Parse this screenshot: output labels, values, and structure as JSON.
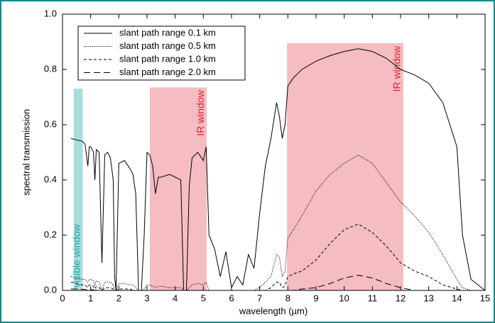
{
  "chart_data": {
    "type": "line",
    "xlabel": "wavelength (µm)",
    "ylabel": "spectral  transmission",
    "xlim": [
      0,
      15
    ],
    "ylim": [
      0,
      1
    ],
    "xticks": [
      0,
      1,
      2,
      3,
      4,
      5,
      6,
      7,
      8,
      9,
      10,
      11,
      12,
      13,
      14,
      15
    ],
    "yticks": [
      {
        "value": 0,
        "label": "0.0"
      },
      0.2,
      0.4,
      0.6,
      0.8,
      {
        "value": 1,
        "label": "1.0"
      }
    ],
    "spans": [
      {
        "x0": 0.4,
        "x1": 0.72,
        "y1": 0.73,
        "color": "#a9dcdb",
        "label": "visible window",
        "label_color": "#2aa5a0"
      },
      {
        "x0": 3.1,
        "x1": 5.12,
        "y1": 0.735,
        "color": "#f5bcc2",
        "label": "IR window",
        "label_color": "#d8262f"
      },
      {
        "x0": 7.97,
        "x1": 12.1,
        "y1": 0.895,
        "color": "#f5bcc2",
        "label": "IR window",
        "label_color": "#d8262f"
      }
    ],
    "x": [
      0.3,
      0.5,
      0.7,
      0.8,
      0.9,
      0.95,
      1.0,
      1.1,
      1.15,
      1.2,
      1.3,
      1.4,
      1.5,
      1.6,
      1.7,
      1.8,
      1.85,
      1.9,
      2.0,
      2.2,
      2.4,
      2.5,
      2.6,
      2.7,
      2.8,
      2.9,
      3.0,
      3.1,
      3.2,
      3.3,
      3.4,
      3.5,
      3.8,
      4.0,
      4.2,
      4.3,
      4.4,
      4.5,
      4.6,
      4.8,
      5.0,
      5.1,
      5.2,
      5.4,
      5.6,
      5.8,
      6.0,
      6.2,
      6.4,
      6.6,
      6.8,
      7.0,
      7.2,
      7.4,
      7.6,
      7.7,
      7.8,
      7.9,
      8.0,
      8.2,
      8.5,
      9.0,
      9.5,
      10.0,
      10.5,
      11.0,
      11.5,
      12.0,
      12.5,
      13.0,
      13.5,
      14.0,
      14.2,
      14.5,
      15.0
    ],
    "series": [
      {
        "name": "slant path range 0.1 km",
        "color": "#000000",
        "dash": "solid",
        "values": [
          0.55,
          0.545,
          0.54,
          0.53,
          0.45,
          0.52,
          0.52,
          0.5,
          0.4,
          0.51,
          0.5,
          0.1,
          0.49,
          0.5,
          0.48,
          0.4,
          0.05,
          0.0,
          0.46,
          0.47,
          0.44,
          0.42,
          0.35,
          0.0,
          0.0,
          0.2,
          0.5,
          0.49,
          0.45,
          0.35,
          0.41,
          0.41,
          0.42,
          0.41,
          0.4,
          0.0,
          0.0,
          0.38,
          0.48,
          0.5,
          0.47,
          0.52,
          0.2,
          0.15,
          0.05,
          0.14,
          0.01,
          0.05,
          0.02,
          0.13,
          0.08,
          0.28,
          0.45,
          0.55,
          0.68,
          0.63,
          0.55,
          0.6,
          0.74,
          0.77,
          0.8,
          0.83,
          0.85,
          0.865,
          0.875,
          0.865,
          0.84,
          0.8,
          0.78,
          0.75,
          0.68,
          0.52,
          0.2,
          0.04,
          0.0
        ]
      },
      {
        "name": "slant path range 0.5 km",
        "color": "#000000",
        "dash": "dotted",
        "values": [
          0.05,
          0.045,
          0.04,
          0.04,
          0.03,
          0.04,
          0.04,
          0.035,
          0.02,
          0.035,
          0.03,
          0.0,
          0.03,
          0.03,
          0.03,
          0.02,
          0.0,
          0.0,
          0.025,
          0.025,
          0.02,
          0.02,
          0.01,
          0.0,
          0.0,
          0.005,
          0.02,
          0.02,
          0.015,
          0.01,
          0.015,
          0.015,
          0.01,
          0.01,
          0.01,
          0.0,
          0.0,
          0.01,
          0.02,
          0.025,
          0.02,
          0.03,
          0.0,
          0.0,
          0.0,
          0.0,
          0.0,
          0.0,
          0.0,
          0.0,
          0.0,
          0.01,
          0.03,
          0.05,
          0.13,
          0.12,
          0.05,
          0.07,
          0.19,
          0.22,
          0.27,
          0.36,
          0.42,
          0.46,
          0.49,
          0.46,
          0.39,
          0.32,
          0.27,
          0.21,
          0.13,
          0.04,
          0.01,
          0.0,
          0.0
        ]
      },
      {
        "name": "slant path range 1.0 km",
        "color": "#000000",
        "dash": "dashed",
        "values": [
          0.03,
          0.025,
          0.02,
          0.02,
          0.01,
          0.02,
          0.02,
          0.015,
          0.005,
          0.015,
          0.01,
          0.0,
          0.01,
          0.01,
          0.01,
          0.005,
          0.0,
          0.0,
          0.005,
          0.005,
          0.005,
          0.0,
          0.0,
          0.0,
          0.0,
          0.0,
          0.0,
          0.0,
          0.0,
          0.0,
          0,
          0,
          0,
          0,
          0,
          0,
          0,
          0,
          0,
          0,
          0,
          0,
          0,
          0,
          0,
          0,
          0,
          0,
          0,
          0,
          0,
          0,
          0,
          0.01,
          0.03,
          0.03,
          0.01,
          0.015,
          0.05,
          0.06,
          0.07,
          0.11,
          0.17,
          0.22,
          0.24,
          0.21,
          0.16,
          0.1,
          0.07,
          0.05,
          0.02,
          0.005,
          0,
          0,
          0
        ]
      },
      {
        "name": "slant path range 2.0 km",
        "color": "#000000",
        "dash": "longdash",
        "values": [
          0.005,
          0.005,
          0.004,
          0.004,
          0,
          0.003,
          0.003,
          0.002,
          0,
          0.002,
          0,
          0,
          0,
          0,
          0,
          0,
          0,
          0,
          0,
          0,
          0,
          0,
          0,
          0,
          0,
          0,
          0,
          0,
          0,
          0,
          0,
          0,
          0,
          0,
          0,
          0,
          0,
          0,
          0,
          0,
          0,
          0,
          0,
          0,
          0,
          0,
          0,
          0,
          0,
          0,
          0,
          0,
          0,
          0,
          0,
          0,
          0,
          0,
          0,
          0,
          0.005,
          0.01,
          0.025,
          0.045,
          0.055,
          0.045,
          0.025,
          0.01,
          0,
          0,
          0,
          0,
          0,
          0,
          0
        ]
      }
    ],
    "legend": "upper left"
  }
}
